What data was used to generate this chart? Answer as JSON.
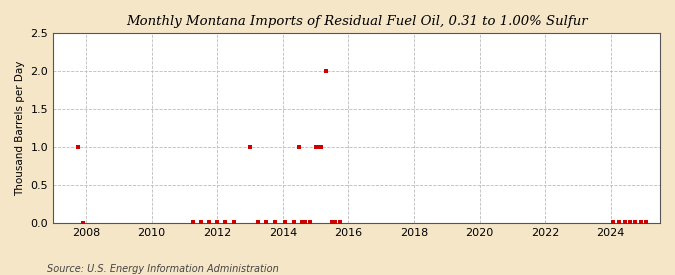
{
  "title": "Monthly Montana Imports of Residual Fuel Oil, 0.31 to 1.00% Sulfur",
  "ylabel": "Thousand Barrels per Day",
  "source": "Source: U.S. Energy Information Administration",
  "fig_bg_color": "#f5e6c8",
  "plot_bg_color": "#ffffff",
  "marker_color": "#cc0000",
  "xlim_left": 2007.0,
  "xlim_right": 2025.5,
  "ylim_bottom": 0.0,
  "ylim_top": 2.5,
  "yticks": [
    0.0,
    0.5,
    1.0,
    1.5,
    2.0,
    2.5
  ],
  "xticks": [
    2008,
    2010,
    2012,
    2014,
    2016,
    2018,
    2020,
    2022,
    2024
  ],
  "data_x": [
    2007.75,
    2007.92,
    2011.25,
    2011.5,
    2011.75,
    2012.0,
    2012.25,
    2012.5,
    2013.0,
    2013.25,
    2013.5,
    2013.75,
    2014.08,
    2014.33,
    2014.5,
    2014.58,
    2014.67,
    2014.83,
    2015.0,
    2015.08,
    2015.17,
    2015.33,
    2015.5,
    2015.58,
    2015.75,
    2024.08,
    2024.25,
    2024.42,
    2024.58,
    2024.75,
    2024.92,
    2025.08
  ],
  "data_y": [
    1.0,
    0.0,
    0.02,
    0.02,
    0.02,
    0.02,
    0.02,
    0.02,
    1.0,
    0.02,
    0.02,
    0.02,
    0.02,
    0.02,
    1.0,
    0.02,
    0.02,
    0.02,
    1.0,
    1.0,
    1.0,
    2.0,
    0.02,
    0.02,
    0.02,
    0.02,
    0.02,
    0.02,
    0.02,
    0.02,
    0.02,
    0.02
  ]
}
